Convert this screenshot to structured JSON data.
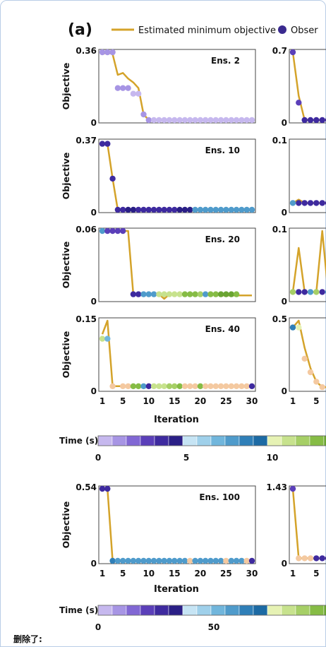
{
  "panel_label": "(a)",
  "legend": {
    "line_label": "Estimated minimum objective",
    "marker_label": "Obser",
    "line_color": "#d4a32a",
    "marker_color": "#3a2a8f"
  },
  "y_label": "Objective",
  "x_label": "Iteration",
  "colorbar_label": "Time (s)",
  "caption": "删除了:",
  "palette": [
    "#c6b8ee",
    "#a795e4",
    "#8167d4",
    "#5b3fb9",
    "#3e2a9f",
    "#2a1f86",
    "#c6e4f4",
    "#9fd0ea",
    "#71b6dc",
    "#4f9bcb",
    "#2f7fb8",
    "#1c6aa4",
    "#e6f2b4",
    "#c7e28d",
    "#a6cf66",
    "#86bc45",
    "#6aa432",
    "#f4c9a0"
  ],
  "colorbars": [
    {
      "ticks": [
        "0",
        "5",
        "10"
      ]
    },
    {
      "ticks": [
        "0",
        "50"
      ]
    }
  ],
  "chart_data": [
    {
      "type": "line",
      "ens": "Ens. 2",
      "y_max_label": "0.36",
      "y_min_label": "0",
      "ylim": [
        0,
        0.36
      ],
      "xlim": [
        1,
        30
      ],
      "x_ticks": [],
      "x": [
        1,
        2,
        3,
        4,
        5,
        6,
        7,
        8,
        9,
        10,
        11,
        12,
        13,
        14,
        15,
        16,
        17,
        18,
        19,
        20,
        21,
        22,
        23,
        24,
        25,
        26,
        27,
        28,
        29,
        30
      ],
      "estimated": [
        0.35,
        0.36,
        0.35,
        0.24,
        0.25,
        0.22,
        0.2,
        0.17,
        0.03,
        0.0,
        0.0,
        0.0,
        0.0,
        0.0,
        0.0,
        0.0,
        0.0,
        0.0,
        0.0,
        0.0,
        0.0,
        0.0,
        0.0,
        0.0,
        0.0,
        0.0,
        0.0,
        0.0,
        0.0,
        0.0
      ],
      "observed": [
        0.36,
        0.36,
        0.36,
        0.17,
        0.17,
        0.17,
        0.14,
        0.14,
        0.03,
        0.0,
        0.0,
        0.0,
        0.0,
        0.0,
        0.0,
        0.0,
        0.0,
        0.0,
        0.0,
        0.0,
        0.0,
        0.0,
        0.0,
        0.0,
        0.0,
        0.0,
        0.0,
        0.0,
        0.0,
        0.0
      ],
      "colors": [
        1,
        1,
        1,
        1,
        1,
        1,
        0,
        0,
        1,
        1,
        0,
        0,
        0,
        0,
        0,
        0,
        0,
        0,
        0,
        0,
        0,
        0,
        0,
        0,
        0,
        0,
        0,
        0,
        0,
        0
      ]
    },
    {
      "type": "line",
      "ens": "Ens. 10",
      "y_max_label": "0.37",
      "y_min_label": "0",
      "ylim": [
        0,
        0.37
      ],
      "xlim": [
        1,
        30
      ],
      "x_ticks": [],
      "x": [
        1,
        2,
        3,
        4,
        5,
        6,
        7,
        8,
        9,
        10,
        11,
        12,
        13,
        14,
        15,
        16,
        17,
        18,
        19,
        20,
        21,
        22,
        23,
        24,
        25,
        26,
        27,
        28,
        29,
        30
      ],
      "estimated": [
        0.36,
        0.36,
        0.17,
        0.0,
        0.0,
        0.0,
        0.0,
        0.0,
        0.0,
        0.0,
        0.0,
        0.0,
        0.0,
        0.0,
        0.0,
        0.0,
        0.0,
        0.0,
        0.0,
        0.0,
        0.0,
        0.0,
        0.0,
        0.0,
        0.0,
        0.0,
        0.0,
        0.0,
        0.0,
        0.0
      ],
      "observed": [
        0.36,
        0.36,
        0.17,
        0.0,
        0.0,
        0.0,
        0.0,
        0.0,
        0.0,
        0.0,
        0.0,
        0.0,
        0.0,
        0.0,
        0.0,
        0.0,
        0.0,
        0.0,
        0.0,
        0.0,
        0.0,
        0.0,
        0.0,
        0.0,
        0.0,
        0.0,
        0.0,
        0.0,
        0.0,
        0.0
      ],
      "colors": [
        4,
        4,
        4,
        4,
        4,
        5,
        5,
        4,
        4,
        4,
        4,
        4,
        4,
        4,
        4,
        5,
        5,
        5,
        9,
        9,
        9,
        9,
        9,
        9,
        9,
        9,
        9,
        9,
        9,
        9
      ]
    },
    {
      "type": "line",
      "ens": "Ens. 20",
      "y_max_label": "0.06",
      "y_min_label": "0",
      "ylim": [
        0,
        0.06
      ],
      "xlim": [
        1,
        30
      ],
      "x_ticks": [],
      "x": [
        1,
        2,
        3,
        4,
        5,
        6,
        7,
        8,
        9,
        10,
        11,
        12,
        13,
        14,
        15,
        16,
        17,
        18,
        19,
        20,
        21,
        22,
        23,
        24,
        25,
        26,
        27,
        28,
        29,
        30
      ],
      "estimated": [
        0.06,
        0.06,
        0.06,
        0.06,
        0.06,
        0.06,
        0.004,
        0.004,
        0.004,
        0.004,
        0.004,
        0.004,
        0.0,
        0.004,
        0.004,
        0.004,
        0.004,
        0.004,
        0.004,
        0.004,
        0.004,
        0.004,
        0.004,
        0.003,
        0.003,
        0.003,
        0.003,
        0.003,
        0.003,
        0.003
      ],
      "observed": [
        0.06,
        0.06,
        0.06,
        0.06,
        0.06,
        null,
        0.004,
        0.004,
        0.004,
        0.004,
        0.004,
        0.004,
        0.004,
        0.004,
        0.004,
        0.004,
        0.004,
        0.004,
        0.004,
        0.004,
        0.004,
        0.004,
        0.004,
        0.004,
        0.004,
        0.004,
        0.004,
        null,
        null,
        null
      ],
      "colors": [
        9,
        3,
        3,
        3,
        3,
        3,
        4,
        4,
        9,
        9,
        9,
        13,
        13,
        13,
        13,
        13,
        15,
        15,
        15,
        14,
        9,
        15,
        15,
        16,
        16,
        16,
        15,
        16,
        16,
        16
      ]
    },
    {
      "type": "line",
      "ens": "Ens. 40",
      "y_max_label": "0.15",
      "y_min_label": "0",
      "ylim": [
        0,
        0.15
      ],
      "xlim": [
        1,
        30
      ],
      "x_ticks": [
        "1",
        "5",
        "10",
        "15",
        "20",
        "25",
        "30"
      ],
      "x": [
        1,
        2,
        3,
        4,
        5,
        6,
        7,
        8,
        9,
        10,
        11,
        12,
        13,
        14,
        15,
        16,
        17,
        18,
        19,
        20,
        21,
        22,
        23,
        24,
        25,
        26,
        27,
        28,
        29,
        30
      ],
      "estimated": [
        0.12,
        0.15,
        0.005,
        0.005,
        0.005,
        0.005,
        0.005,
        0.005,
        0.005,
        0.005,
        0.005,
        0.005,
        0.005,
        0.005,
        0.005,
        0.005,
        0.005,
        0.005,
        0.005,
        0.005,
        0.005,
        0.005,
        0.005,
        0.005,
        0.005,
        0.005,
        0.005,
        0.005,
        0.005,
        0.005
      ],
      "observed": [
        0.11,
        0.11,
        0.005,
        null,
        0.005,
        0.005,
        0.005,
        0.005,
        0.005,
        0.005,
        0.005,
        0.005,
        0.005,
        0.005,
        0.005,
        0.005,
        0.005,
        0.005,
        0.005,
        0.005,
        0.005,
        0.005,
        0.005,
        0.005,
        0.005,
        0.005,
        0.005,
        0.005,
        0.005,
        0.005
      ],
      "colors": [
        13,
        8,
        17,
        17,
        17,
        17,
        15,
        15,
        9,
        4,
        13,
        13,
        13,
        14,
        14,
        15,
        17,
        17,
        17,
        15,
        17,
        17,
        17,
        17,
        17,
        17,
        17,
        17,
        17,
        4
      ]
    },
    {
      "type": "line",
      "ens": "Ens. 100",
      "y_max_label": "0.54",
      "y_min_label": "0",
      "ylim": [
        0,
        0.54
      ],
      "xlim": [
        1,
        30
      ],
      "x_ticks": [
        "1",
        "5",
        "10",
        "15",
        "20",
        "25",
        "30"
      ],
      "x": [
        1,
        2,
        3,
        4,
        5,
        6,
        7,
        8,
        9,
        10,
        11,
        12,
        13,
        14,
        15,
        16,
        17,
        18,
        19,
        20,
        21,
        22,
        23,
        24,
        25,
        26,
        27,
        28,
        29,
        30
      ],
      "estimated": [
        0.54,
        0.54,
        0.0,
        0.0,
        0.0,
        0.0,
        0.0,
        0.0,
        0.0,
        0.0,
        0.0,
        0.0,
        0.0,
        0.0,
        0.0,
        0.0,
        0.0,
        0.0,
        0.0,
        0.0,
        0.0,
        0.0,
        0.0,
        0.0,
        0.0,
        0.0,
        0.0,
        0.0,
        0.0,
        0.0
      ],
      "observed": [
        0.54,
        0.54,
        0.0,
        0.0,
        0.0,
        0.0,
        0.0,
        0.0,
        0.0,
        0.0,
        0.0,
        0.0,
        0.0,
        0.0,
        0.0,
        0.0,
        0.0,
        0.0,
        0.0,
        0.0,
        0.0,
        0.0,
        0.0,
        0.0,
        0.0,
        0.0,
        0.0,
        0.0,
        0.0,
        0.0
      ],
      "colors": [
        4,
        4,
        10,
        9,
        9,
        9,
        9,
        9,
        9,
        9,
        9,
        9,
        9,
        9,
        9,
        9,
        9,
        17,
        9,
        9,
        9,
        9,
        9,
        9,
        17,
        9,
        9,
        9,
        17,
        4
      ]
    },
    {
      "type": "line",
      "partial": true,
      "y_max_label": "0.7",
      "y_min_label": "0",
      "ylim": [
        0,
        0.7
      ],
      "x": [
        1,
        2,
        3,
        4,
        5,
        6,
        7
      ],
      "estimated": [
        0.7,
        0.25,
        0.0,
        0.0,
        0.0,
        0.0,
        0.0
      ],
      "observed": [
        0.7,
        0.18,
        0.0,
        0.0,
        0.0,
        0.0,
        0.0
      ],
      "colors": [
        3,
        3,
        4,
        4,
        4,
        4,
        4
      ],
      "x_ticks": []
    },
    {
      "type": "line",
      "partial": true,
      "y_max_label": "0.1",
      "y_min_label": "0",
      "ylim": [
        0,
        0.1
      ],
      "x": [
        1,
        2,
        3,
        4,
        5,
        6,
        7
      ],
      "estimated": [
        0.01,
        0.015,
        0.01,
        0.01,
        0.01,
        0.01,
        0.01
      ],
      "observed": [
        0.01,
        0.01,
        0.01,
        0.01,
        0.01,
        0.01,
        0.01
      ],
      "colors": [
        9,
        4,
        4,
        4,
        4,
        4,
        4
      ],
      "x_ticks": []
    },
    {
      "type": "line",
      "partial": true,
      "y_max_label": "0.1",
      "y_min_label": "0",
      "ylim": [
        0,
        0.1
      ],
      "x": [
        1,
        2,
        3,
        4,
        5,
        6,
        7
      ],
      "estimated": [
        0.01,
        0.075,
        0.01,
        0.01,
        0.01,
        0.1,
        0.01
      ],
      "observed": [
        0.01,
        0.01,
        0.01,
        0.01,
        0.01,
        0.01,
        0.01
      ],
      "colors": [
        14,
        4,
        4,
        9,
        14,
        4,
        9
      ],
      "x_ticks": []
    },
    {
      "type": "line",
      "partial": true,
      "y_max_label": "0.5",
      "y_min_label": "0",
      "ylim": [
        0,
        0.5
      ],
      "x": [
        1,
        2,
        3,
        4,
        5,
        6,
        7
      ],
      "estimated": [
        0.45,
        0.5,
        0.3,
        0.15,
        0.05,
        0.01,
        0.01
      ],
      "observed": [
        0.45,
        0.45,
        0.22,
        0.12,
        0.05,
        0.01,
        null
      ],
      "colors": [
        10,
        12,
        17,
        17,
        17,
        17,
        17
      ],
      "x_ticks": [
        "1",
        "5"
      ]
    },
    {
      "type": "line",
      "partial": true,
      "y_max_label": "1.43",
      "y_min_label": "0",
      "ylim": [
        0,
        1.43
      ],
      "x": [
        1,
        2,
        3,
        4,
        5,
        6,
        7
      ],
      "estimated": [
        1.43,
        0.05,
        0.05,
        0.05,
        0.05,
        0.05,
        0.05
      ],
      "observed": [
        1.43,
        0.05,
        0.05,
        0.05,
        0.05,
        0.05,
        0.05
      ],
      "colors": [
        3,
        17,
        17,
        17,
        4,
        4,
        4
      ],
      "x_ticks": [
        "1",
        "5"
      ]
    }
  ]
}
